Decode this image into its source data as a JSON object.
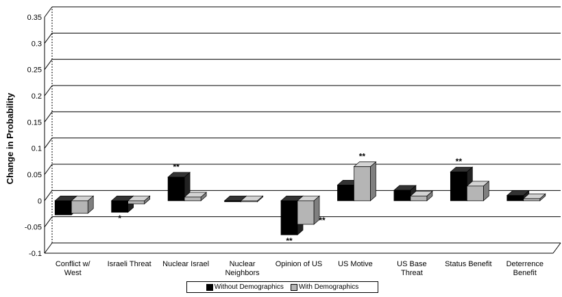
{
  "chart_data": {
    "type": "bar",
    "title": "",
    "xlabel": "",
    "ylabel": "Change in Probability",
    "ylim": [
      -0.1,
      0.35
    ],
    "yticks": [
      "0.35",
      "0.3",
      "0.25",
      "0.2",
      "0.15",
      "0.1",
      "0.05",
      "0",
      "-0.05",
      "-0.1"
    ],
    "categories": [
      [
        "Conflict w/",
        "West"
      ],
      [
        "Israeli Threat"
      ],
      [
        "Nuclear Israel"
      ],
      [
        "Nuclear",
        "Neighbors"
      ],
      [
        "Opinion of US"
      ],
      [
        "US Motive"
      ],
      [
        "US Base",
        "Threat"
      ],
      [
        "Status Benefit"
      ],
      [
        "Deterrence",
        "Benefit"
      ]
    ],
    "series": [
      {
        "name": "Without Demographics",
        "color": "#000000",
        "values": [
          -0.027,
          -0.022,
          0.045,
          0.0,
          -0.065,
          0.03,
          0.02,
          0.055,
          0.01
        ],
        "annotations": [
          "",
          "*",
          "**",
          "",
          "**",
          "",
          "",
          "**",
          ""
        ]
      },
      {
        "name": "With Demographics",
        "color": "#b5b5b5",
        "values": [
          -0.024,
          -0.006,
          0.007,
          0.0,
          -0.045,
          0.065,
          0.009,
          0.028,
          0.004
        ],
        "annotations": [
          "",
          "",
          "",
          "",
          "**",
          "**",
          "",
          "",
          ""
        ]
      }
    ],
    "grid": true,
    "legend": "bottom-center"
  }
}
